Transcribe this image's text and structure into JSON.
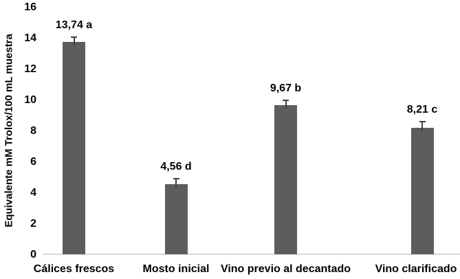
{
  "chart_data": {
    "type": "bar",
    "title": "",
    "ylabel": "Equivalente mM Trolox/100 mL muestra",
    "xlabel": "",
    "categories": [
      "Cálices frescos",
      "Mosto inicial",
      "Vino previo al decantado",
      "Vino clarificado"
    ],
    "values": [
      13.74,
      4.56,
      9.67,
      8.21
    ],
    "data_labels": [
      "13,74 a",
      "4,56 d",
      "9,67 b",
      "8,21 c"
    ],
    "error_bars": [
      0.35,
      0.4,
      0.35,
      0.45
    ],
    "ylim": [
      0,
      16
    ],
    "yticks": [
      0,
      2,
      4,
      6,
      8,
      10,
      12,
      14,
      16
    ],
    "grid": false,
    "legend": "none",
    "bar_color": "#5d5d5d",
    "error_bar_color": "#3f3f3f",
    "axis_line_color": "#d9d9d9",
    "text_color": "#000000",
    "background": "#ffffff"
  }
}
